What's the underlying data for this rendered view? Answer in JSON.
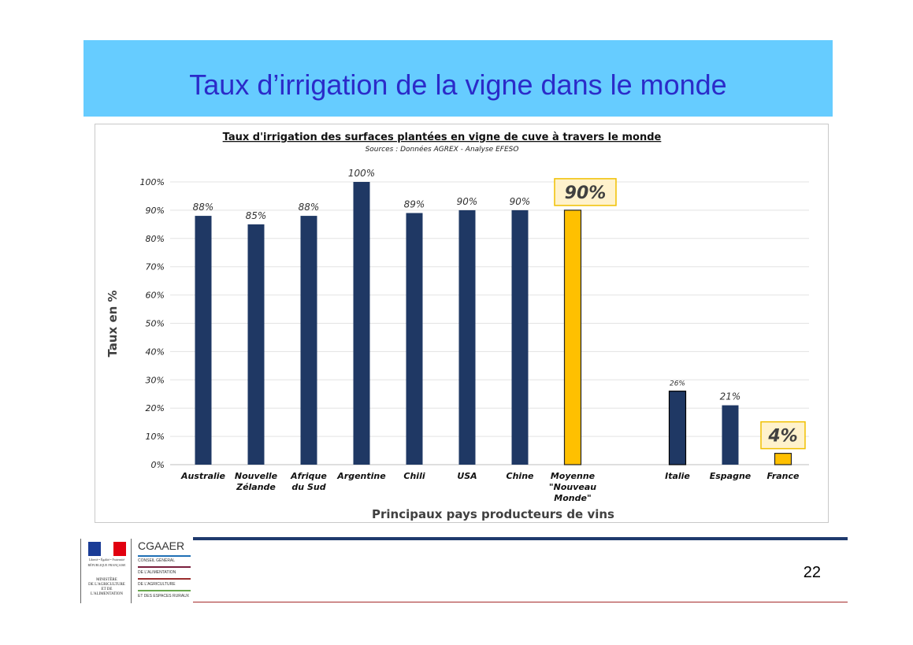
{
  "slide": {
    "title": "Taux d’irrigation de la vigne dans le monde",
    "page_number": "22"
  },
  "logos": {
    "ministry_motto": "Liberté • Égalité • Fraternité",
    "ministry_republic": "RÉPUBLIQUE FRANÇAISE",
    "ministry_lines": [
      "MINISTÈRE",
      "DE L'AGRICULTURE",
      "ET DE",
      "L'ALIMENTATION"
    ],
    "cgaaer_name": "CGAAER",
    "cgaaer_lines": [
      "CONSEIL GÉNÉRAL",
      "DE L'ALIMENTATION",
      "DE L'AGRICULTURE",
      "ET DES ESPACES RURAUX"
    ]
  },
  "colors": {
    "title_band": "#66ccff",
    "title_text": "#2b2bc9",
    "bar_default": "#1f3864",
    "bar_highlight": "#ffc000",
    "highlight_label_bg": "#fff2cc",
    "highlight_label_border": "#f0c000"
  },
  "chart_data": {
    "type": "bar",
    "title": "Taux d'irrigation des surfaces plantées en vigne de cuve à travers le monde",
    "subtitle": "Sources : Données AGREX - Analyse EFESO",
    "xlabel": "Principaux pays producteurs de vins",
    "ylabel": "Taux en %",
    "ylim": [
      0,
      100
    ],
    "yticks": [
      "0%",
      "10%",
      "20%",
      "30%",
      "40%",
      "50%",
      "60%",
      "70%",
      "80%",
      "90%",
      "100%"
    ],
    "grid": true,
    "categories": [
      [
        "Australie"
      ],
      [
        "Nouvelle",
        "Zélande"
      ],
      [
        "Afrique",
        "du Sud"
      ],
      [
        "Argentine"
      ],
      [
        "Chili"
      ],
      [
        "USA"
      ],
      [
        "Chine"
      ],
      [
        "Moyenne",
        "\"Nouveau",
        "Monde\""
      ],
      [
        "Italie"
      ],
      [
        "Espagne"
      ],
      [
        "France"
      ]
    ],
    "values": [
      88,
      85,
      88,
      100,
      89,
      90,
      90,
      90,
      26,
      21,
      4
    ],
    "labels": [
      "88%",
      "85%",
      "88%",
      "100%",
      "89%",
      "90%",
      "90%",
      "90%",
      "26%",
      "21%",
      "4%"
    ],
    "highlight": [
      false,
      false,
      false,
      false,
      false,
      false,
      false,
      true,
      false,
      false,
      true
    ]
  }
}
